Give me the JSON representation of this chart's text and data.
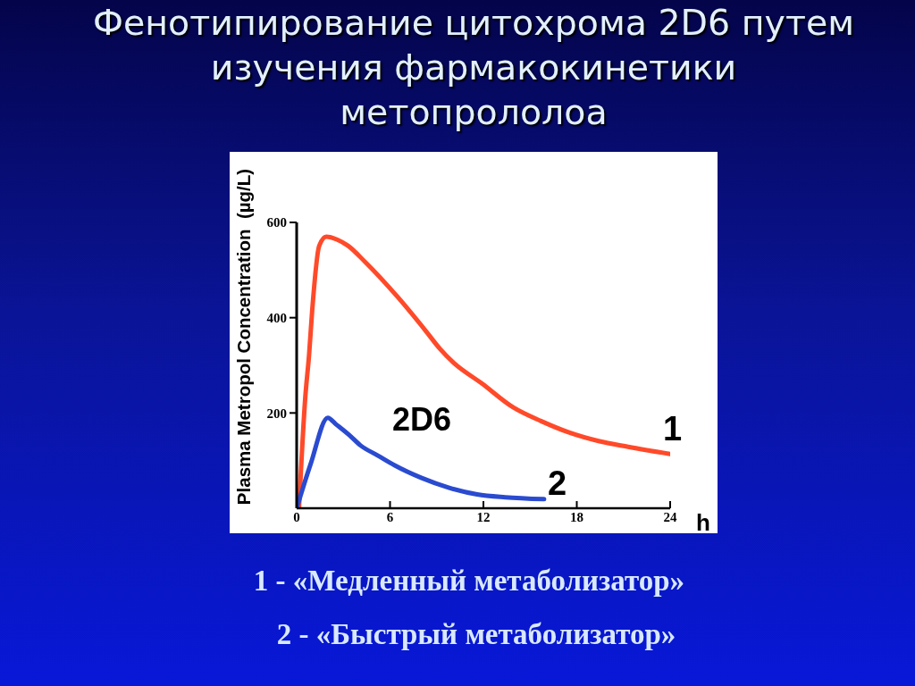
{
  "chart_data": {
    "type": "line",
    "title": "Фенотипирование цитохрома 2D6 путем\nизучения фармакокинетики\nметопрололоа",
    "xlabel": "h",
    "ylabel": "Plasma Metropol Concentration  (µg/L)",
    "annotations": [
      "2D6",
      "1 - «Медленный метаболизатор»",
      "2 - «Быстрый метаболизатор»"
    ],
    "series": [
      {
        "name": "1",
        "color": "#ff4a2a",
        "x": [
          0.15,
          0.55,
          0.8,
          1,
          1.45,
          1.9,
          2.6,
          3.3,
          4.4,
          6.5,
          8.3,
          9.2,
          10.1,
          11.9,
          13.9,
          15.7,
          17.5,
          19.4,
          21.3,
          24
        ],
        "values": [
          0,
          231,
          323,
          416,
          551,
          570,
          564,
          551,
          517,
          443,
          372,
          335,
          305,
          262,
          212,
          183,
          159,
          141,
          129,
          114
        ]
      },
      {
        "name": "2",
        "color": "#2a4bd0",
        "x": [
          0,
          0.9,
          2,
          2.5,
          3.4,
          4.1,
          5.2,
          6.3,
          8,
          9.8,
          11.6,
          13.4,
          15.9
        ],
        "values": [
          0,
          93,
          190,
          177,
          153,
          132,
          111,
          90,
          64,
          43,
          29,
          23,
          19
        ]
      }
    ],
    "xlim": [
      0,
      24
    ],
    "xticks": [
      0,
      6,
      12,
      18,
      24
    ],
    "ylim": [
      0,
      600
    ],
    "yticks": [
      200,
      400,
      600
    ],
    "marker": "none"
  }
}
